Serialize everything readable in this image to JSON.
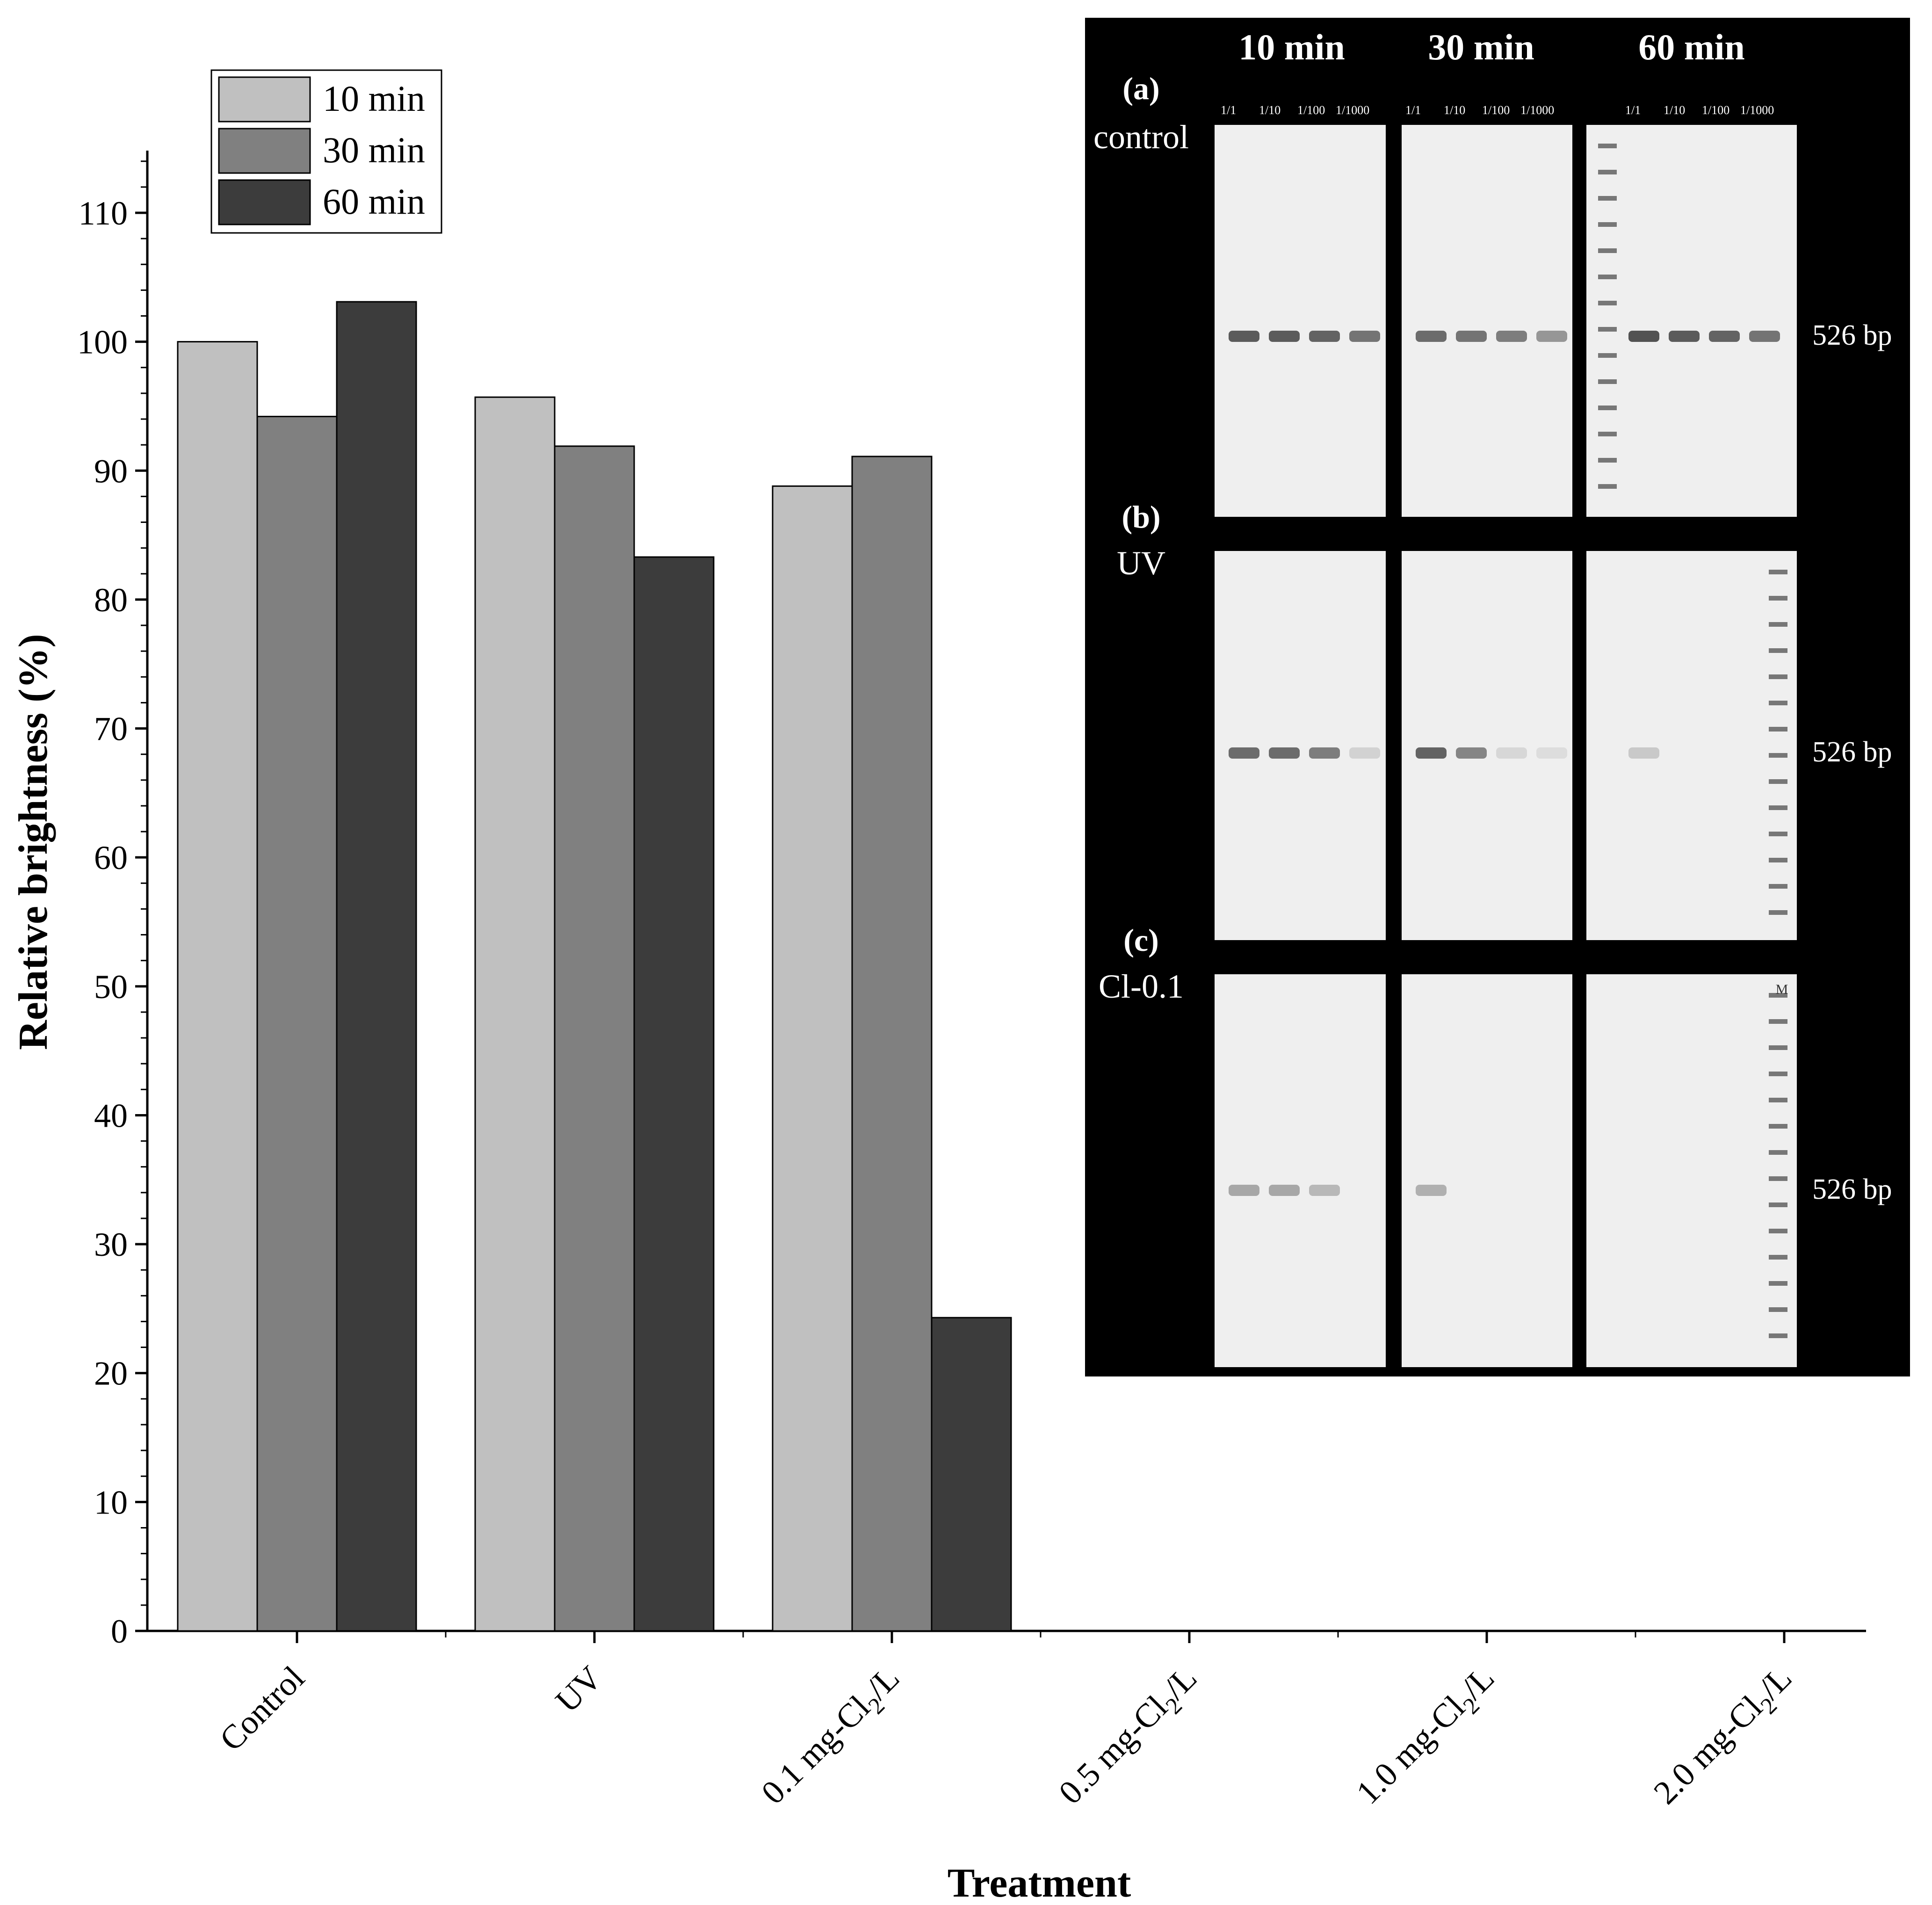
{
  "chart_data": {
    "type": "bar",
    "title": "",
    "xlabel": "Treatment",
    "ylabel": "Relative brightness (%)",
    "ylim": [
      0,
      115
    ],
    "yticks": [
      0,
      10,
      20,
      30,
      40,
      50,
      60,
      70,
      80,
      90,
      100,
      110
    ],
    "grid": false,
    "legend_position": "top-left",
    "categories": [
      {
        "pre": "Control",
        "sub": "",
        "post": ""
      },
      {
        "pre": "UV",
        "sub": "",
        "post": ""
      },
      {
        "pre": "0.1 mg-Cl",
        "sub": "2",
        "post": "/L"
      },
      {
        "pre": "0.5 mg-Cl",
        "sub": "2",
        "post": "/L"
      },
      {
        "pre": "1.0 mg-Cl",
        "sub": "2",
        "post": "/L"
      },
      {
        "pre": "2.0 mg-Cl",
        "sub": "2",
        "post": "/L"
      }
    ],
    "series": [
      {
        "name": "10 min",
        "color": "#c0c0c0",
        "values": [
          100,
          95.7,
          88.8,
          0,
          0,
          0
        ]
      },
      {
        "name": "30 min",
        "color": "#808080",
        "values": [
          94.2,
          91.9,
          91.1,
          0,
          0,
          0
        ]
      },
      {
        "name": "60 min",
        "color": "#3c3c3c",
        "values": [
          103.1,
          83.3,
          24.3,
          0,
          0,
          0
        ]
      }
    ]
  },
  "inset": {
    "col_headers": [
      "10 min",
      "30 min",
      "60 min"
    ],
    "dilutions": [
      "1/1",
      "1/10",
      "1/100",
      "1/1000"
    ],
    "rows": [
      {
        "letter": "(a)",
        "name": "control",
        "band_label": "526 bp"
      },
      {
        "letter": "(b)",
        "name": "UV",
        "band_label": "526 bp"
      },
      {
        "letter": "(c)",
        "name": "Cl-0.1",
        "band_label": "526 bp"
      }
    ],
    "marker_label": "M",
    "band_intensity": [
      [
        [
          0.85,
          0.85,
          0.8,
          0.7
        ],
        [
          0.75,
          0.7,
          0.65,
          0.5
        ],
        [
          0.9,
          0.85,
          0.8,
          0.7
        ]
      ],
      [
        [
          0.75,
          0.75,
          0.65,
          0.15
        ],
        [
          0.8,
          0.6,
          0.12,
          0.08
        ],
        [
          0.2,
          0,
          0,
          0
        ]
      ],
      [
        [
          0.4,
          0.4,
          0.3,
          0
        ],
        [
          0.35,
          0,
          0,
          0
        ],
        [
          0,
          0,
          0,
          0
        ]
      ]
    ]
  }
}
